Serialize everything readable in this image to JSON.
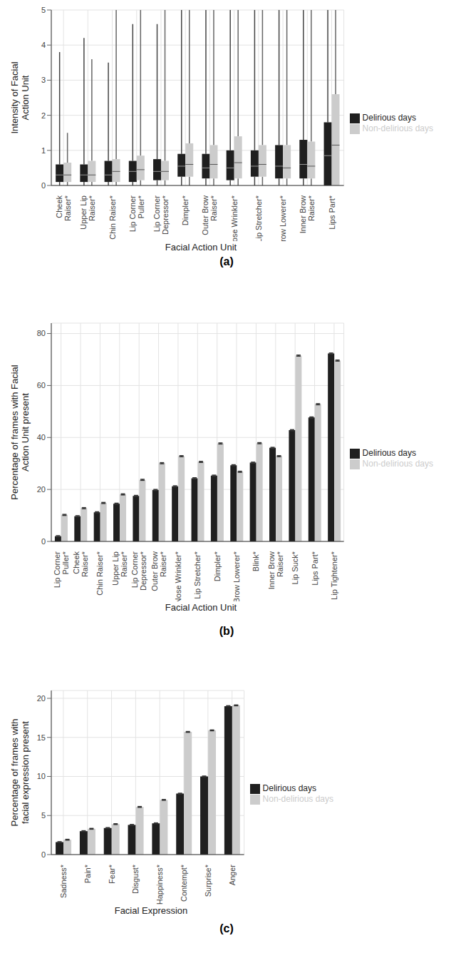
{
  "chart_data": [
    {
      "type": "box",
      "title": "(a)",
      "x_label": "Facial Action Unit",
      "y_label": "Intensity of Facial Action Unit",
      "categories": [
        "Cheek Raiser*",
        "Upper Lip Raiser*",
        "Chin Raiser*",
        "Lip Corner Puller*",
        "Lip Corner Depressor*",
        "Dimpler*",
        "Outer Brow Raiser*",
        "Nose Wrinkler*",
        "Lip Stretcher*",
        "Brow Lowerer*",
        "Inner Brow Raiser*",
        "Lips Part*"
      ],
      "series": [
        {
          "name": "Delirious days",
          "color": "#1f1f1f",
          "whisker_low": [
            0,
            0,
            0,
            0,
            0,
            0,
            0,
            0,
            0,
            0,
            0,
            0
          ],
          "q1": [
            0.1,
            0.1,
            0.1,
            0.1,
            0.15,
            0.25,
            0.2,
            0.15,
            0.25,
            0.2,
            0.2,
            0
          ],
          "median": [
            0.3,
            0.3,
            0.3,
            0.4,
            0.4,
            0.55,
            0.5,
            0.5,
            0.55,
            0.55,
            0.6,
            0.85
          ],
          "q3": [
            0.6,
            0.6,
            0.7,
            0.7,
            0.75,
            0.9,
            0.9,
            1.0,
            1.0,
            1.15,
            1.3,
            1.8
          ],
          "whisker_high": [
            3.8,
            4.2,
            3.5,
            4.6,
            4.6,
            5,
            5,
            5,
            5,
            5,
            5,
            5
          ]
        },
        {
          "name": "Non-delirious days",
          "color": "#cccccc",
          "whisker_low": [
            0,
            0,
            0,
            0,
            0,
            0,
            0,
            0,
            0,
            0,
            0,
            0
          ],
          "q1": [
            0.1,
            0.1,
            0.1,
            0.15,
            0.15,
            0.25,
            0.2,
            0.2,
            0.25,
            0.2,
            0.2,
            0
          ],
          "median": [
            0.3,
            0.3,
            0.4,
            0.45,
            0.4,
            0.6,
            0.6,
            0.65,
            0.6,
            0.5,
            0.55,
            1.15
          ],
          "q3": [
            0.65,
            0.7,
            0.75,
            0.85,
            0.7,
            1.2,
            1.15,
            1.4,
            1.15,
            1.15,
            1.25,
            2.6
          ],
          "whisker_high": [
            1.5,
            3.6,
            5,
            5,
            5,
            5,
            5,
            5,
            5,
            5,
            5,
            5
          ]
        }
      ],
      "ylim": [
        0,
        5
      ],
      "yticks": [
        0,
        1,
        2,
        3,
        4,
        5
      ],
      "grid": true,
      "legend": "right"
    },
    {
      "type": "bar",
      "title": "(b)",
      "x_label": "Facial Action Unit",
      "y_label": "Percentage of frames with Facial Action Unit present",
      "categories": [
        "Lip Corner Puller*",
        "Cheek Raiser*",
        "Chin Raiser*",
        "Upper Lip Raiser*",
        "Lip Corner Depressor*",
        "Outer Brow Raiser*",
        "Nose Wrinkler*",
        "Lip Stretcher*",
        "Dimpler*",
        "Brow Lowerer*",
        "Blink*",
        "Inner Brow Raiser*",
        "Lip Suck*",
        "Lips Part*",
        "Lip Tightener*"
      ],
      "series": [
        {
          "name": "Delirious days",
          "color": "#1f1f1f",
          "values": [
            2,
            9.7,
            11.2,
            14.5,
            17.5,
            19.8,
            21.2,
            24.3,
            25.3,
            29.3,
            30.3,
            36,
            42.8,
            47.7,
            72.3
          ],
          "errors": [
            0.2,
            0.2,
            0.2,
            0.2,
            0.2,
            0.2,
            0.2,
            0.2,
            0.2,
            0.2,
            0.2,
            0.2,
            0.2,
            0.2,
            0.2
          ]
        },
        {
          "name": "Non-delirious days",
          "color": "#cccccc",
          "values": [
            10.2,
            12.8,
            14.8,
            18.1,
            23.7,
            30.1,
            32.8,
            30.6,
            37.7,
            26.8,
            37.8,
            32.8,
            71.5,
            52.8,
            69.6
          ],
          "errors": [
            0.2,
            0.2,
            0.2,
            0.2,
            0.2,
            0.2,
            0.2,
            0.2,
            0.2,
            0.2,
            0.2,
            0.2,
            0.2,
            0.2,
            0.2
          ]
        }
      ],
      "ylim": [
        0,
        84
      ],
      "yticks": [
        0,
        20,
        40,
        60,
        80
      ],
      "grid": true,
      "legend": "right"
    },
    {
      "type": "bar",
      "title": "(c)",
      "x_label": "Facial Expression",
      "y_label": "Percentage of frames with facial expression present",
      "categories": [
        "Sadness*",
        "Pain*",
        "Fear*",
        "Disgust*",
        "Happiness*",
        "Contempt*",
        "Surprise*",
        "Anger"
      ],
      "series": [
        {
          "name": "Delirious days",
          "color": "#1f1f1f",
          "values": [
            1.6,
            3.0,
            3.4,
            3.8,
            4.0,
            7.8,
            10.0,
            19.0
          ],
          "errors": [
            0.05,
            0.05,
            0.05,
            0.05,
            0.05,
            0.05,
            0.05,
            0.05
          ]
        },
        {
          "name": "Non-delirious days",
          "color": "#cccccc",
          "values": [
            1.9,
            3.3,
            3.9,
            6.1,
            7.0,
            15.7,
            15.9,
            19.1
          ],
          "errors": [
            0.05,
            0.05,
            0.05,
            0.05,
            0.05,
            0.05,
            0.05,
            0.05
          ]
        }
      ],
      "ylim": [
        0,
        21
      ],
      "yticks": [
        0,
        5,
        10,
        15,
        20
      ],
      "grid": true,
      "legend": "right"
    }
  ]
}
